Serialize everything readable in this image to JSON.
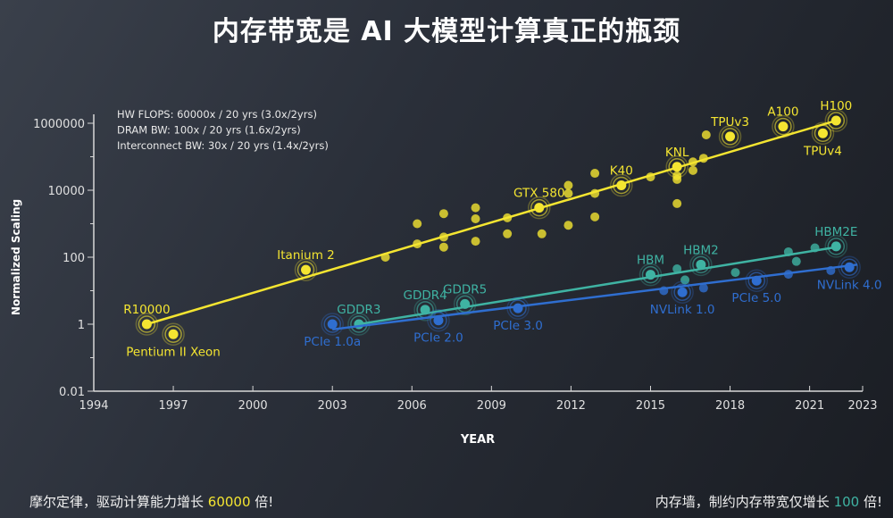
{
  "title": "内存带宽是 AI 大模型计算真正的瓶颈",
  "footer": {
    "left_prefix": "摩尔定律，驱动计算能力增长 ",
    "left_value": "60000",
    "left_suffix": " 倍!",
    "right_prefix": "内存墙，制约内存带宽仅增长 ",
    "right_value": "100",
    "right_suffix": " 倍!"
  },
  "chart_data": {
    "type": "scatter",
    "xlabel": "YEAR",
    "ylabel": "Normalized Scaling",
    "xlim": [
      1994,
      2023
    ],
    "ylim": [
      0.01,
      1000000
    ],
    "yscale": "log",
    "xticks": [
      "1994",
      "1997",
      "2000",
      "2003",
      "2006",
      "2009",
      "2012",
      "2015",
      "2018",
      "2021",
      "2023"
    ],
    "yticks": [
      "0.01",
      "1",
      "100",
      "10000",
      "1000000"
    ],
    "grid": false,
    "annotations": [
      "HW FLOPS:  60000x / 20 yrs (3.0x/2yrs)",
      "DRAM BW:  100x / 20 yrs (1.6x/2yrs)",
      "Interconnect BW:  30x / 20 yrs (1.4x/2yrs)"
    ],
    "series": [
      {
        "key": "hw_flops",
        "color": "#f4e531",
        "trend": [
          [
            1996,
            1
          ],
          [
            2022,
            1200000
          ]
        ],
        "points": [
          {
            "x": 1996,
            "y": 1,
            "label": "R10000",
            "label_pos": "above"
          },
          {
            "x": 1997,
            "y": 0.5,
            "label": "Pentium II Xeon",
            "label_pos": "below"
          },
          {
            "x": 2002,
            "y": 42,
            "label": "Itanium 2",
            "label_pos": "above"
          },
          {
            "x": 2005,
            "y": 100
          },
          {
            "x": 2006.2,
            "y": 1000
          },
          {
            "x": 2006.2,
            "y": 250
          },
          {
            "x": 2007.2,
            "y": 2000
          },
          {
            "x": 2007.2,
            "y": 400
          },
          {
            "x": 2007.2,
            "y": 200
          },
          {
            "x": 2008.4,
            "y": 3000
          },
          {
            "x": 2008.4,
            "y": 1400
          },
          {
            "x": 2008.4,
            "y": 300
          },
          {
            "x": 2009.6,
            "y": 1500
          },
          {
            "x": 2009.6,
            "y": 500
          },
          {
            "x": 2010.8,
            "y": 3000,
            "label": "GTX 580",
            "label_pos": "above"
          },
          {
            "x": 2010.9,
            "y": 500
          },
          {
            "x": 2011.9,
            "y": 14000
          },
          {
            "x": 2011.9,
            "y": 8000
          },
          {
            "x": 2011.9,
            "y": 900
          },
          {
            "x": 2012.9,
            "y": 32000
          },
          {
            "x": 2012.9,
            "y": 8000
          },
          {
            "x": 2012.9,
            "y": 1600
          },
          {
            "x": 2013.9,
            "y": 14000,
            "label": "K40",
            "label_pos": "above"
          },
          {
            "x": 2015,
            "y": 25000
          },
          {
            "x": 2016,
            "y": 50000,
            "label": "KNL",
            "label_pos": "above"
          },
          {
            "x": 2016,
            "y": 27000
          },
          {
            "x": 2016,
            "y": 21000
          },
          {
            "x": 2016,
            "y": 4000
          },
          {
            "x": 2016.6,
            "y": 70000
          },
          {
            "x": 2016.6,
            "y": 39000
          },
          {
            "x": 2017,
            "y": 90000
          },
          {
            "x": 2017.1,
            "y": 450000
          },
          {
            "x": 2018,
            "y": 400000,
            "label": "TPUv3",
            "label_pos": "above"
          },
          {
            "x": 2020,
            "y": 800000,
            "label": "A100",
            "label_pos": "above"
          },
          {
            "x": 2022,
            "y": 1200000,
            "label": "H100",
            "label_pos": "above"
          },
          {
            "x": 2021.5,
            "y": 500000,
            "label": "TPUv4",
            "label_pos": "below"
          }
        ]
      },
      {
        "key": "dram_bw",
        "color": "#3fb3a3",
        "trend": [
          [
            2004,
            1
          ],
          [
            2022,
            200
          ]
        ],
        "points": [
          {
            "x": 2004,
            "y": 1,
            "label": "GDDR3",
            "label_pos": "above"
          },
          {
            "x": 2006.5,
            "y": 2.7,
            "label": "GDDR4",
            "label_pos": "above"
          },
          {
            "x": 2008,
            "y": 4,
            "label": "GDDR5",
            "label_pos": "above"
          },
          {
            "x": 2015,
            "y": 30,
            "label": "HBM",
            "label_pos": "above"
          },
          {
            "x": 2016,
            "y": 45
          },
          {
            "x": 2016.3,
            "y": 21
          },
          {
            "x": 2016.9,
            "y": 60,
            "label": "HBM2",
            "label_pos": "above"
          },
          {
            "x": 2018.2,
            "y": 35
          },
          {
            "x": 2020.2,
            "y": 145
          },
          {
            "x": 2020.5,
            "y": 75
          },
          {
            "x": 2021.2,
            "y": 190
          },
          {
            "x": 2022,
            "y": 210,
            "label": "HBM2E",
            "label_pos": "above"
          }
        ]
      },
      {
        "key": "interconnect_bw",
        "color": "#2f6ed0",
        "trend": [
          [
            2003,
            0.7
          ],
          [
            2022.8,
            60
          ]
        ],
        "points": [
          {
            "x": 2003,
            "y": 1,
            "label": "PCIe 1.0a",
            "label_pos": "below"
          },
          {
            "x": 2007,
            "y": 1.3,
            "label": "PCIe 2.0",
            "label_pos": "below"
          },
          {
            "x": 2010,
            "y": 3,
            "label": "PCIe 3.0",
            "label_pos": "below"
          },
          {
            "x": 2015.5,
            "y": 10
          },
          {
            "x": 2016.2,
            "y": 9,
            "label": "NVLink 1.0",
            "label_pos": "below"
          },
          {
            "x": 2017,
            "y": 12
          },
          {
            "x": 2019,
            "y": 20,
            "label": "PCIe 5.0",
            "label_pos": "below"
          },
          {
            "x": 2020.2,
            "y": 31
          },
          {
            "x": 2021.8,
            "y": 40
          },
          {
            "x": 2022.5,
            "y": 50,
            "label": "NVLink 4.0",
            "label_pos": "below"
          }
        ]
      }
    ]
  }
}
